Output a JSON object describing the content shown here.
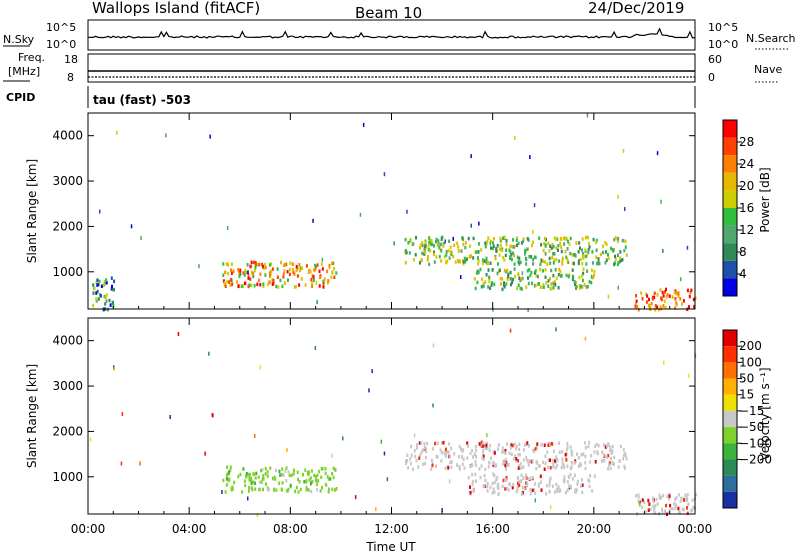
{
  "header": {
    "station": "Wallops Island (fitACF)",
    "beam": "Beam 10",
    "date": "24/Dec/2019"
  },
  "top_panels": {
    "nsky_label": "N.Sky",
    "nsky_ticks": [
      "10^5",
      "10^0"
    ],
    "nsearch_label": "N.Search",
    "nsearch_ticks": [
      "10^5",
      "10^0"
    ],
    "freq_label_1": "Freq.",
    "freq_label_2": "[MHz]",
    "freq_ticks": [
      "18",
      "8"
    ],
    "nave_label": "Nave",
    "nave_ticks": [
      "60",
      "0"
    ],
    "cpid_label": "CPID",
    "cpid_value": "tau (fast) -503"
  },
  "chart_data": [
    {
      "type": "heatmap",
      "name": "power",
      "xlabel": "",
      "ylabel": "Slant Range [km]",
      "xlim": [
        "00:00",
        "24:00"
      ],
      "ylim": [
        180,
        4500
      ],
      "yticks": [
        1000,
        2000,
        3000,
        4000
      ],
      "colorbar": {
        "label": "Power [dB]",
        "ticks": [
          4,
          8,
          12,
          16,
          20,
          24,
          28
        ],
        "colors": [
          "#0000e6",
          "#1f4fa8",
          "#2e8b57",
          "#4fa86e",
          "#2fbf3a",
          "#cfcf00",
          "#e6b800",
          "#ff7f00",
          "#ff4000",
          "#ff0000"
        ]
      },
      "echo_regions": [
        {
          "t0": 0.1,
          "t1": 1.0,
          "r0": 200,
          "r1": 900,
          "level": "mixed"
        },
        {
          "t0": 5.3,
          "t1": 9.8,
          "r0": 700,
          "r1": 1250,
          "level": "high"
        },
        {
          "t0": 12.5,
          "t1": 21.3,
          "r0": 1200,
          "r1": 1800,
          "level": "mid"
        },
        {
          "t0": 15.0,
          "t1": 20.0,
          "r0": 650,
          "r1": 1100,
          "level": "mid"
        },
        {
          "t0": 21.6,
          "t1": 24.0,
          "r0": 200,
          "r1": 650,
          "level": "strong"
        }
      ]
    },
    {
      "type": "heatmap",
      "name": "velocity",
      "xlabel": "Time UT",
      "ylabel": "Slant Range [km]",
      "xlim": [
        "00:00",
        "24:00"
      ],
      "ylim": [
        180,
        4500
      ],
      "xticks": [
        "00:00",
        "04:00",
        "08:00",
        "12:00",
        "16:00",
        "20:00",
        "00:00"
      ],
      "yticks": [
        1000,
        2000,
        3000,
        4000
      ],
      "colorbar": {
        "label": "Velocity [m s⁻¹]",
        "ticks": [
          200,
          100,
          50,
          15,
          -15,
          -50,
          -100,
          -200
        ],
        "colors": [
          "#1a2fa0",
          "#2e6d9e",
          "#2e8b57",
          "#3cb33c",
          "#7fd22e",
          "#c8c8c8",
          "#f0e000",
          "#ffb000",
          "#ff7000",
          "#ff3000",
          "#e00000"
        ]
      },
      "echo_regions": [
        {
          "t0": 5.3,
          "t1": 9.8,
          "r0": 700,
          "r1": 1250,
          "level": "green"
        },
        {
          "t0": 12.5,
          "t1": 21.3,
          "r0": 1200,
          "r1": 1800,
          "level": "grey"
        },
        {
          "t0": 15.0,
          "t1": 20.0,
          "r0": 650,
          "r1": 1100,
          "level": "grey"
        },
        {
          "t0": 21.6,
          "t1": 24.0,
          "r0": 200,
          "r1": 650,
          "level": "grey"
        }
      ]
    }
  ]
}
